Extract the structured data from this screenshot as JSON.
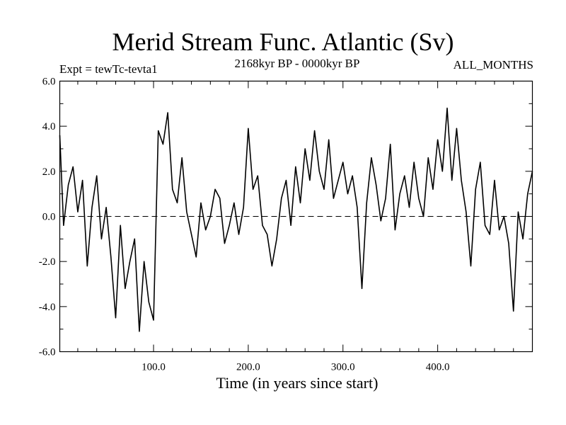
{
  "chart_data": {
    "type": "line",
    "title": "Merid Stream Func. Atlantic (Sv)",
    "subtitle": "2168kyr BP - 0000kyr BP",
    "experiment": "Expt = tewTc-tevta1",
    "season": "ALL_MONTHS",
    "xlabel": "Time (in years since start)",
    "ylabel": "",
    "xlim": [
      1,
      500
    ],
    "ylim": [
      -6,
      6
    ],
    "xticks": [
      100,
      200,
      300,
      400
    ],
    "xtick_labels": [
      "100.0",
      "200.0",
      "300.0",
      "400.0"
    ],
    "yticks": [
      -6,
      -4,
      -2,
      0,
      2,
      4,
      6
    ],
    "ytick_labels": [
      "-6.0",
      "-4.0",
      "-2.0",
      "0.0",
      "2.0",
      "4.0",
      "6.0"
    ],
    "zero_line": true,
    "series": [
      {
        "name": "Merid Stream Func. Atlantic",
        "x": [
          1,
          5,
          10,
          15,
          20,
          25,
          30,
          35,
          40,
          45,
          50,
          55,
          60,
          65,
          70,
          75,
          80,
          85,
          90,
          95,
          100,
          105,
          110,
          115,
          120,
          125,
          130,
          135,
          140,
          145,
          150,
          155,
          160,
          165,
          170,
          175,
          180,
          185,
          190,
          195,
          200,
          205,
          210,
          215,
          220,
          225,
          230,
          235,
          240,
          245,
          250,
          255,
          260,
          265,
          270,
          275,
          280,
          285,
          290,
          295,
          300,
          305,
          310,
          315,
          320,
          325,
          330,
          335,
          340,
          345,
          350,
          355,
          360,
          365,
          370,
          375,
          380,
          385,
          390,
          395,
          400,
          405,
          410,
          415,
          420,
          425,
          430,
          435,
          440,
          445,
          450,
          455,
          460,
          465,
          470,
          475,
          480,
          485,
          490,
          495,
          500
        ],
        "y": [
          3.6,
          -0.4,
          1.4,
          2.2,
          0.2,
          1.6,
          -2.2,
          0.4,
          1.8,
          -1.0,
          0.4,
          -1.8,
          -4.5,
          -0.4,
          -3.2,
          -2.0,
          -1.0,
          -5.1,
          -2.0,
          -3.8,
          -4.6,
          3.8,
          3.2,
          4.6,
          1.2,
          0.6,
          2.6,
          0.2,
          -0.8,
          -1.8,
          0.6,
          -0.6,
          0.0,
          1.2,
          0.8,
          -1.2,
          -0.4,
          0.6,
          -0.8,
          0.4,
          3.9,
          1.2,
          1.8,
          -0.4,
          -0.8,
          -2.2,
          -1.0,
          0.8,
          1.6,
          -0.4,
          2.2,
          0.6,
          3.0,
          1.6,
          3.8,
          2.0,
          1.2,
          3.4,
          0.8,
          1.6,
          2.4,
          1.0,
          1.8,
          0.4,
          -3.2,
          0.6,
          2.6,
          1.4,
          -0.2,
          0.8,
          3.2,
          -0.6,
          1.0,
          1.8,
          0.4,
          2.4,
          0.8,
          0.0,
          2.6,
          1.2,
          3.4,
          2.0,
          4.8,
          1.6,
          3.9,
          1.6,
          0.2,
          -2.2,
          1.2,
          2.4,
          -0.4,
          -0.8,
          1.6,
          -0.6,
          0.0,
          -1.2,
          -4.2,
          0.2,
          -1.0,
          1.0,
          2.0
        ]
      }
    ]
  }
}
